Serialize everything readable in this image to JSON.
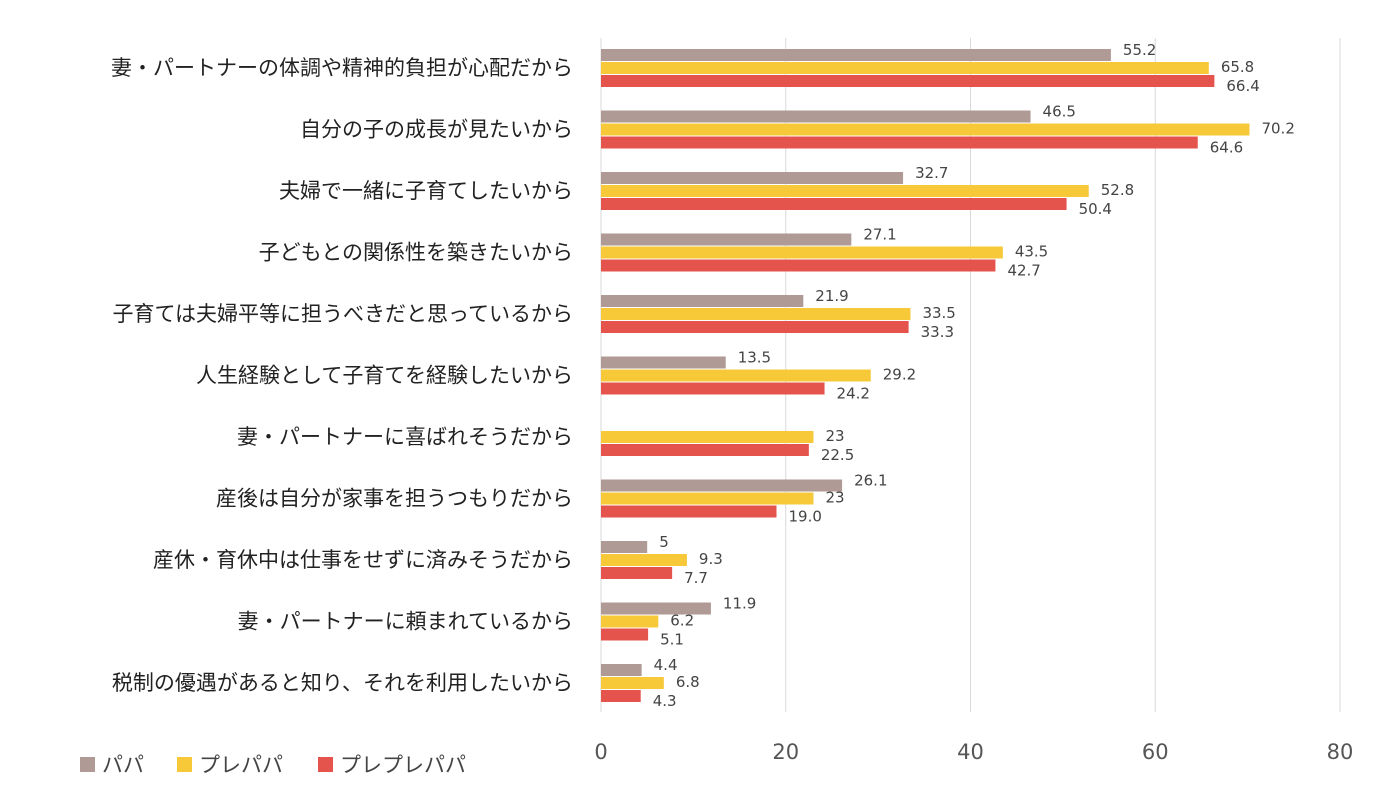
{
  "chart_data": {
    "type": "bar",
    "orientation": "horizontal",
    "categories": [
      "妻・パートナーの体調や精神的負担が心配だから",
      "自分の子の成長が見たいから",
      "夫婦で一緒に子育てしたいから",
      "子どもとの関係性を築きたいから",
      "子育ては夫婦平等に担うべきだと思っているから",
      "人生経験として子育てを経験したいから",
      "妻・パートナーに喜ばれそうだから",
      "産後は自分が家事を担うつもりだから",
      "産休・育休中は仕事をせずに済みそうだから",
      "妻・パートナーに頼まれているから",
      "税制の優遇があると知り、それを利用したいから"
    ],
    "series": [
      {
        "name": "パパ",
        "color": "#b09a96",
        "values": [
          55.2,
          46.5,
          32.7,
          27.1,
          21.9,
          13.5,
          null,
          26.1,
          5,
          11.9,
          4.4
        ],
        "labels": [
          "55.2",
          "46.5",
          "32.7",
          "27.1",
          "21.9",
          "13.5",
          "",
          "26.1",
          "5",
          "11.9",
          "4.4"
        ]
      },
      {
        "name": "プレパパ",
        "color": "#f7c838",
        "values": [
          65.8,
          70.2,
          52.8,
          43.5,
          33.5,
          29.2,
          23,
          23,
          9.3,
          6.2,
          6.8
        ],
        "labels": [
          "65.8",
          "70.2",
          "52.8",
          "43.5",
          "33.5",
          "29.2",
          "23",
          "23",
          "9.3",
          "6.2",
          "6.8"
        ]
      },
      {
        "name": "プレプレパパ",
        "color": "#e5544c",
        "values": [
          66.4,
          64.6,
          50.4,
          42.7,
          33.3,
          24.2,
          22.5,
          19.0,
          7.7,
          5.1,
          4.3
        ],
        "labels": [
          "66.4",
          "64.6",
          "50.4",
          "42.7",
          "33.3",
          "24.2",
          "22.5",
          "19.0",
          "7.7",
          "5.1",
          "4.3"
        ]
      }
    ],
    "xlim": [
      0,
      80
    ],
    "xticks": [
      "0",
      "20",
      "40",
      "60",
      "80"
    ],
    "title": "",
    "xlabel": "",
    "ylabel": "",
    "grid": true,
    "legend_position": "bottom-left"
  }
}
